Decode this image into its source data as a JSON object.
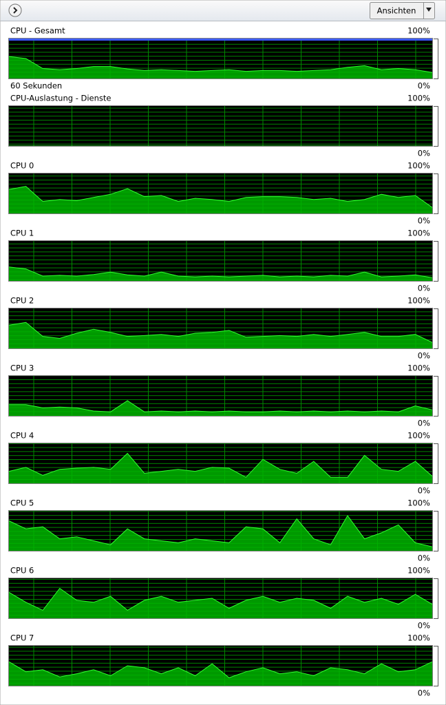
{
  "header": {
    "views_button": "Ansichten"
  },
  "graphs": [
    {
      "title": "CPU - Gesamt",
      "time_label": "60 Sekunden",
      "yticks": [
        {
          "value": 0,
          "label": "0%"
        },
        {
          "value": 100,
          "label": "100%"
        }
      ],
      "max_frequency": 100,
      "values": [
        55,
        50,
        25,
        22,
        25,
        30,
        30,
        24,
        20,
        22,
        20,
        18,
        20,
        22,
        18,
        20,
        20,
        18,
        20,
        22,
        28,
        32,
        22,
        25,
        22,
        15
      ]
    },
    {
      "title": "CPU-Auslastung - Dienste",
      "yticks": [
        {
          "value": 0,
          "label": "0%"
        },
        {
          "value": 100,
          "label": "100%"
        }
      ],
      "values": [
        0,
        0,
        0,
        0,
        0,
        0,
        0,
        0,
        0,
        0,
        0,
        0,
        0,
        0,
        0,
        0,
        0,
        0,
        0,
        0,
        0,
        0,
        0,
        0,
        0,
        0
      ]
    },
    {
      "title": "CPU 0",
      "yticks": [
        {
          "value": 0,
          "label": "0%"
        },
        {
          "value": 100,
          "label": "100%"
        }
      ],
      "values": [
        60,
        68,
        30,
        35,
        32,
        40,
        48,
        62,
        42,
        45,
        30,
        38,
        35,
        30,
        40,
        42,
        42,
        40,
        35,
        38,
        30,
        35,
        48,
        40,
        45,
        15
      ]
    },
    {
      "title": "CPU 1",
      "yticks": [
        {
          "value": 0,
          "label": "0%"
        },
        {
          "value": 100,
          "label": "100%"
        }
      ],
      "values": [
        35,
        30,
        12,
        14,
        12,
        16,
        22,
        15,
        12,
        22,
        12,
        10,
        12,
        10,
        12,
        14,
        10,
        12,
        10,
        14,
        12,
        22,
        10,
        12,
        15,
        8
      ]
    },
    {
      "title": "CPU 2",
      "yticks": [
        {
          "value": 0,
          "label": "0%"
        },
        {
          "value": 100,
          "label": "100%"
        }
      ],
      "values": [
        58,
        65,
        30,
        25,
        38,
        48,
        40,
        30,
        32,
        35,
        30,
        38,
        40,
        45,
        28,
        30,
        32,
        30,
        35,
        30,
        35,
        40,
        30,
        30,
        35,
        15
      ]
    },
    {
      "title": "CPU 3",
      "yticks": [
        {
          "value": 0,
          "label": "0%"
        },
        {
          "value": 100,
          "label": "100%"
        }
      ],
      "values": [
        28,
        28,
        20,
        22,
        20,
        12,
        10,
        38,
        10,
        12,
        10,
        12,
        10,
        12,
        10,
        10,
        12,
        10,
        12,
        10,
        12,
        10,
        12,
        10,
        25,
        15
      ]
    },
    {
      "title": "CPU 4",
      "yticks": [
        {
          "value": 0,
          "label": "0%"
        },
        {
          "value": 100,
          "label": "100%"
        }
      ],
      "values": [
        30,
        40,
        20,
        35,
        38,
        40,
        35,
        75,
        25,
        30,
        35,
        30,
        40,
        38,
        15,
        60,
        35,
        25,
        55,
        15,
        15,
        70,
        35,
        30,
        55,
        18
      ]
    },
    {
      "title": "CPU 5",
      "yticks": [
        {
          "value": 0,
          "label": "0%"
        },
        {
          "value": 100,
          "label": "100%"
        }
      ],
      "values": [
        75,
        55,
        60,
        30,
        35,
        25,
        15,
        55,
        30,
        25,
        20,
        30,
        25,
        20,
        60,
        55,
        20,
        80,
        30,
        15,
        88,
        30,
        45,
        65,
        20,
        10
      ]
    },
    {
      "title": "CPU 6",
      "yticks": [
        {
          "value": 0,
          "label": "0%"
        },
        {
          "value": 100,
          "label": "100%"
        }
      ],
      "values": [
        65,
        40,
        20,
        75,
        45,
        40,
        55,
        20,
        45,
        55,
        40,
        45,
        50,
        25,
        45,
        55,
        40,
        50,
        45,
        25,
        55,
        40,
        50,
        35,
        60,
        35
      ]
    },
    {
      "title": "CPU 7",
      "yticks": [
        {
          "value": 0,
          "label": "0%"
        },
        {
          "value": 100,
          "label": "100%"
        }
      ],
      "values": [
        60,
        35,
        40,
        22,
        30,
        40,
        25,
        50,
        45,
        30,
        45,
        25,
        55,
        20,
        35,
        45,
        30,
        35,
        25,
        45,
        40,
        30,
        55,
        35,
        40,
        60
      ]
    }
  ]
}
